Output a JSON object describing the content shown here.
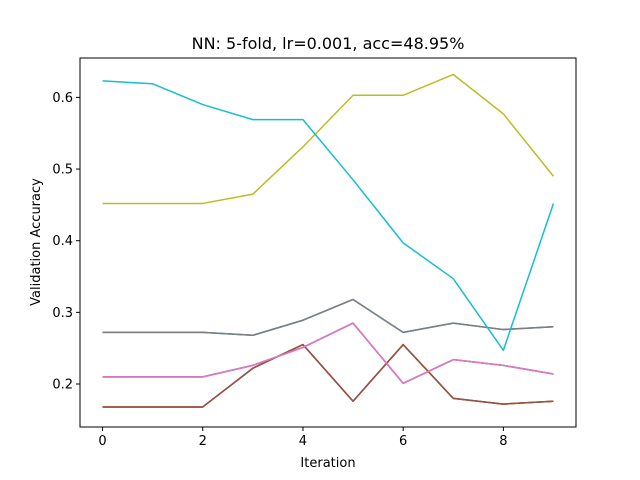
{
  "chart_data": {
    "type": "line",
    "title": "NN: 5-fold, lr=0.001, acc=48.95%",
    "xlabel": "Iteration",
    "ylabel": "Validation Accuracy",
    "xlim": [
      -0.45,
      9.45
    ],
    "ylim": [
      0.14,
      0.655
    ],
    "xticks": [
      0,
      2,
      4,
      6,
      8
    ],
    "yticks": [
      0.2,
      0.3,
      0.4,
      0.5,
      0.6
    ],
    "ytick_labels": [
      "0.2",
      "0.3",
      "0.4",
      "0.5",
      "0.6"
    ],
    "grid": false,
    "legend": false,
    "x": [
      0,
      1,
      2,
      3,
      4,
      5,
      6,
      7,
      8,
      9
    ],
    "series": [
      {
        "color": "#1f77b4",
        "values": [
          0.272,
          0.272,
          0.272,
          0.268,
          0.289,
          0.318,
          0.272,
          0.285,
          0.276,
          0.28
        ]
      },
      {
        "color": "#ff7f0e",
        "values": [
          0.168,
          0.168,
          0.168,
          0.222,
          0.255,
          0.176,
          0.255,
          0.18,
          0.172,
          0.176
        ]
      },
      {
        "color": "#2ca02c",
        "values": [
          0.21,
          0.21,
          0.21,
          0.226,
          0.251,
          0.285,
          0.201,
          0.234,
          0.226,
          0.214
        ]
      },
      {
        "color": "#d62728",
        "values": [
          0.168,
          0.168,
          0.168,
          0.222,
          0.255,
          0.176,
          0.255,
          0.18,
          0.172,
          0.176
        ]
      },
      {
        "color": "#9467bd",
        "values": [
          0.21,
          0.21,
          0.21,
          0.226,
          0.251,
          0.285,
          0.201,
          0.234,
          0.226,
          0.214
        ]
      },
      {
        "color": "#8c564b",
        "values": [
          0.168,
          0.168,
          0.168,
          0.222,
          0.255,
          0.176,
          0.255,
          0.18,
          0.172,
          0.176
        ]
      },
      {
        "color": "#e377c2",
        "values": [
          0.21,
          0.21,
          0.21,
          0.226,
          0.251,
          0.285,
          0.201,
          0.234,
          0.226,
          0.214
        ]
      },
      {
        "color": "#7f7f7f",
        "values": [
          0.272,
          0.272,
          0.272,
          0.268,
          0.289,
          0.318,
          0.272,
          0.285,
          0.276,
          0.28
        ]
      },
      {
        "color": "#bcbd22",
        "values": [
          0.452,
          0.452,
          0.452,
          0.465,
          0.531,
          0.603,
          0.603,
          0.632,
          0.577,
          0.49
        ]
      },
      {
        "color": "#17becf",
        "values": [
          0.623,
          0.619,
          0.59,
          0.569,
          0.569,
          0.485,
          0.397,
          0.347,
          0.247,
          0.452
        ]
      }
    ]
  }
}
